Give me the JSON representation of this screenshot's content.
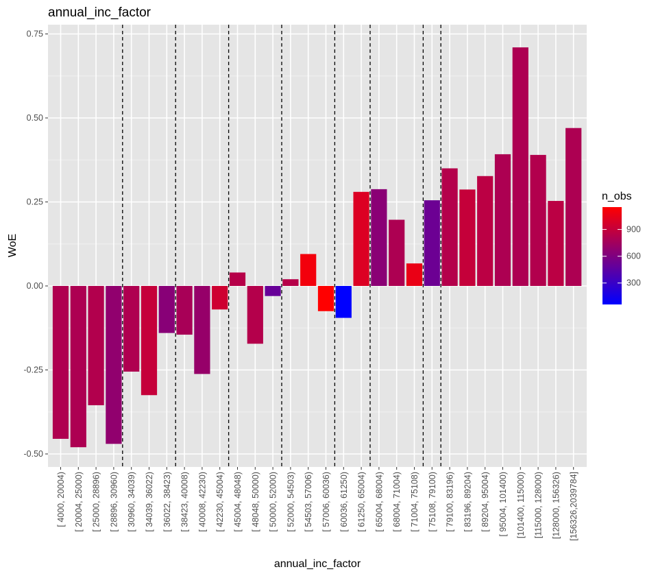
{
  "chart_data": {
    "type": "bar",
    "title": "annual_inc_factor",
    "xlabel": "annual_inc_factor",
    "ylabel": "WoE",
    "ylim": [
      -0.55,
      0.78
    ],
    "yticks": [
      -0.5,
      -0.25,
      0.0,
      0.25,
      0.5,
      0.75
    ],
    "ytick_labels": [
      "-0.50",
      "-0.25",
      "0.00",
      "0.25",
      "0.50",
      "0.75"
    ],
    "grid": true,
    "background": "#e5e5e5",
    "categories": [
      "[ 4000,  20004)",
      "[ 20004,  25000)",
      "[ 25000,  28896)",
      "[ 28896,  30960)",
      "[ 30960,  34039)",
      "[ 34039,  36022)",
      "[ 36022,  38423)",
      "[ 38423,  40008)",
      "[ 40008,  42230)",
      "[ 42230,  45004)",
      "[ 45004,  48048)",
      "[ 48048,  50000)",
      "[ 50000,  52000)",
      "[ 52000,  54503)",
      "[ 54503,  57006)",
      "[ 57006,  60036)",
      "[ 60036,  61250)",
      "[ 61250,  65004)",
      "[ 65004,  68004)",
      "[ 68004,  71004)",
      "[ 71004,  75108)",
      "[ 75108,  79100)",
      "[ 79100,  83196)",
      "[ 83196,  89204)",
      "[ 89204,  95004)",
      "[ 95004, 101400)",
      "[101400, 115000)",
      "[115000, 128000)",
      "[128000, 156326)",
      "[156326,2039784]"
    ],
    "values": [
      -0.455,
      -0.48,
      -0.355,
      -0.47,
      -0.255,
      -0.325,
      -0.14,
      -0.145,
      -0.262,
      -0.07,
      0.04,
      -0.172,
      -0.03,
      0.02,
      0.095,
      -0.075,
      -0.095,
      0.28,
      0.288,
      0.197,
      0.067,
      0.255,
      0.35,
      0.287,
      0.327,
      0.392,
      0.71,
      0.39,
      0.253,
      0.47
    ],
    "n_obs": [
      810,
      800,
      820,
      680,
      810,
      900,
      640,
      780,
      700,
      940,
      840,
      830,
      500,
      840,
      1100,
      1150,
      60,
      1000,
      650,
      800,
      1060,
      520,
      830,
      900,
      860,
      800,
      800,
      820,
      860,
      800
    ],
    "vlines_after_index": [
      3,
      6,
      9,
      12,
      15,
      17,
      20,
      21
    ],
    "vline_style": "dashed",
    "fill_scale": {
      "name": "n_obs",
      "low_color": "#0000ff",
      "high_color": "#ff0000",
      "min": 60,
      "max": 1150,
      "ticks": [
        300,
        600,
        900
      ],
      "tick_labels": [
        "300",
        "600",
        "900"
      ]
    },
    "legend_position": "right"
  }
}
